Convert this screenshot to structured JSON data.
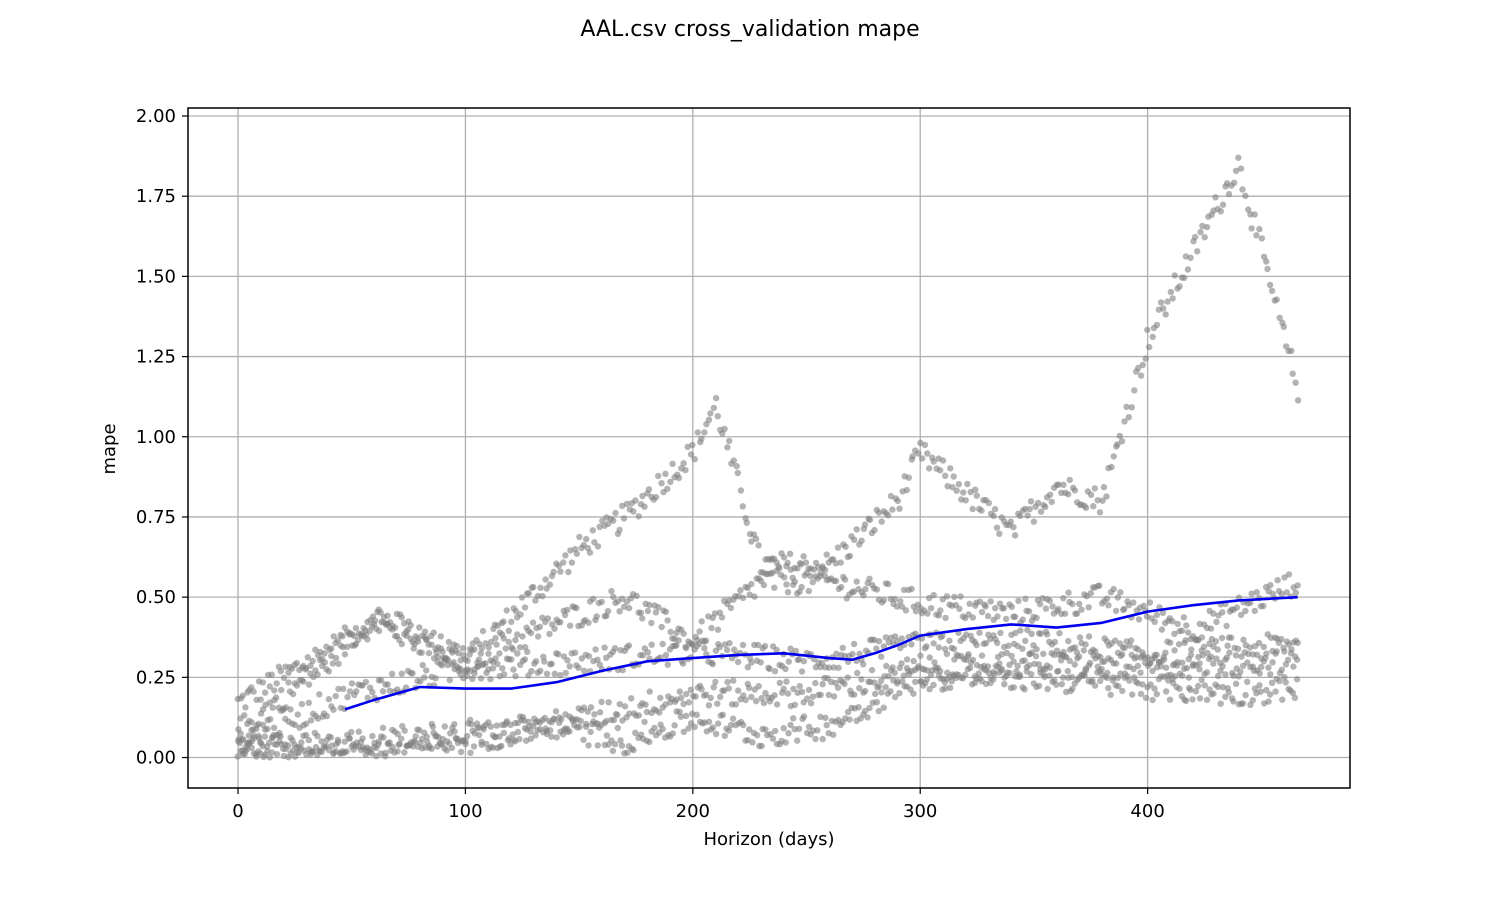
{
  "chart_data": {
    "type": "scatter",
    "title": "AAL.csv cross_validation mape",
    "xlabel": "Horizon (days)",
    "ylabel": "mape",
    "xlim": [
      -22,
      489
    ],
    "ylim": [
      -0.095,
      2.025
    ],
    "x_ticks": [
      0,
      100,
      200,
      300,
      400
    ],
    "y_ticks": [
      0.0,
      0.25,
      0.5,
      0.75,
      1.0,
      1.25,
      1.5,
      1.75,
      2.0
    ],
    "x_tick_labels": [
      "0",
      "100",
      "200",
      "300",
      "400"
    ],
    "y_tick_labels": [
      "0.00",
      "0.25",
      "0.50",
      "0.75",
      "1.00",
      "1.25",
      "1.50",
      "1.75",
      "2.00"
    ],
    "grid": true,
    "legend": "none",
    "colors": {
      "points": "#808080",
      "rolling_mean": "#0000ee"
    },
    "series": [
      {
        "kind": "scatter",
        "x_range": [
          0,
          466
        ],
        "bands": [
          {
            "x": [
              0,
              60,
              100,
              150,
              170,
              200,
              210,
              230,
              260,
              290,
              300,
              340,
              360,
              380,
              400,
              440,
              466
            ],
            "y": [
              0.17,
              0.42,
              0.3,
              0.65,
              0.75,
              0.95,
              1.1,
              0.6,
              0.6,
              0.8,
              0.95,
              0.7,
              0.85,
              0.8,
              1.3,
              1.85,
              1.15
            ]
          },
          {
            "x": [
              0,
              40,
              60,
              100,
              140,
              170,
              200,
              230,
              260,
              300,
              340,
              380,
              420,
              466
            ],
            "y": [
              0.08,
              0.3,
              0.45,
              0.3,
              0.42,
              0.5,
              0.36,
              0.55,
              0.55,
              0.48,
              0.45,
              0.5,
              0.4,
              0.55
            ]
          },
          {
            "x": [
              0,
              50,
              100,
              150,
              200,
              250,
              300,
              350,
              400,
              466
            ],
            "y": [
              0.05,
              0.2,
              0.28,
              0.3,
              0.33,
              0.3,
              0.35,
              0.36,
              0.32,
              0.35
            ]
          },
          {
            "x": [
              0,
              50,
              100,
              150,
              200,
              250,
              300,
              350,
              400,
              466
            ],
            "y": [
              0.04,
              0.02,
              0.05,
              0.12,
              0.2,
              0.2,
              0.27,
              0.29,
              0.28,
              0.3
            ]
          },
          {
            "x": [
              0,
              60,
              100,
              140,
              170,
              200,
              230,
              260,
              300,
              350,
              400,
              440,
              466
            ],
            "y": [
              0.03,
              0.05,
              0.08,
              0.1,
              0.05,
              0.12,
              0.07,
              0.1,
              0.25,
              0.25,
              0.22,
              0.2,
              0.22
            ]
          }
        ]
      },
      {
        "kind": "line",
        "x": [
          47,
          60,
          80,
          100,
          120,
          140,
          160,
          180,
          200,
          220,
          240,
          260,
          270,
          280,
          290,
          300,
          320,
          340,
          360,
          380,
          400,
          420,
          440,
          466
        ],
        "y": [
          0.15,
          0.18,
          0.22,
          0.215,
          0.215,
          0.235,
          0.27,
          0.3,
          0.31,
          0.32,
          0.325,
          0.31,
          0.305,
          0.325,
          0.35,
          0.38,
          0.4,
          0.415,
          0.405,
          0.42,
          0.455,
          0.475,
          0.49,
          0.5
        ]
      }
    ]
  }
}
